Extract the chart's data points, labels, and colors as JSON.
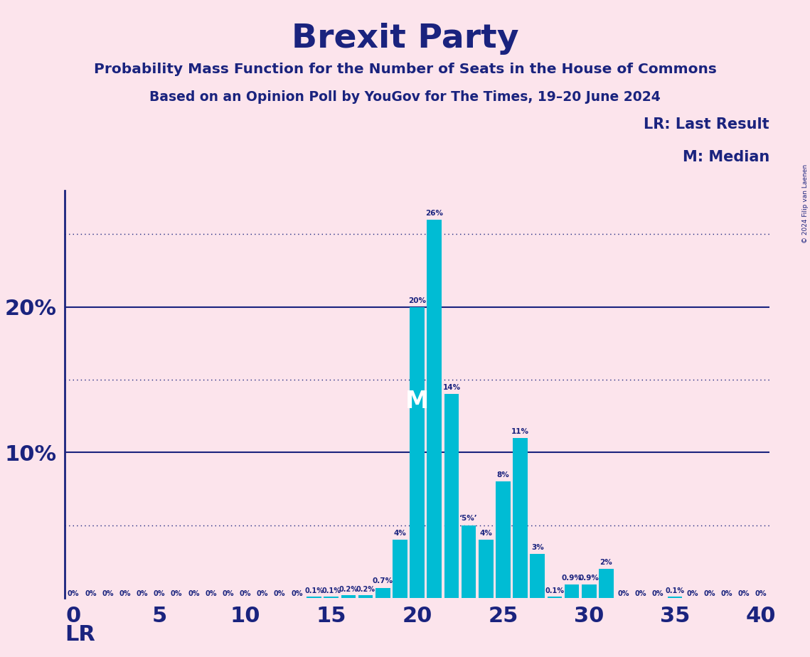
{
  "title": "Brexit Party",
  "subtitle1": "Probability Mass Function for the Number of Seats in the House of Commons",
  "subtitle2": "Based on an Opinion Poll by YouGov for The Times, 19–20 June 2024",
  "legend_lr": "LR: Last Result",
  "legend_m": "M: Median",
  "copyright": "© 2024 Filip van Laenen",
  "lr_label": "LR",
  "m_label": "M",
  "background_color": "#fce4ec",
  "bar_color": "#00bcd4",
  "title_color": "#1a237e",
  "axis_color": "#1a237e",
  "label_color": "#1a237e",
  "median_seat": 21,
  "lr_seat": 0,
  "xlim": [
    -0.5,
    40.5
  ],
  "ylim": [
    0,
    28
  ],
  "solid_ylines": [
    10,
    20
  ],
  "dotted_ylines": [
    5,
    15,
    25
  ],
  "bar_data": {
    "0": 0.0,
    "1": 0.0,
    "2": 0.0,
    "3": 0.0,
    "4": 0.0,
    "5": 0.0,
    "6": 0.0,
    "7": 0.0,
    "8": 0.0,
    "9": 0.0,
    "10": 0.0,
    "11": 0.0,
    "12": 0.0,
    "13": 0.0,
    "14": 0.1,
    "15": 0.1,
    "16": 0.2,
    "17": 0.2,
    "18": 0.7,
    "19": 4.0,
    "20": 20.0,
    "21": 26.0,
    "22": 14.0,
    "23": 5.0,
    "24": 4.0,
    "25": 8.0,
    "26": 11.0,
    "27": 3.0,
    "28": 0.1,
    "29": 0.9,
    "30": 0.9,
    "31": 2.0,
    "32": 0.0,
    "33": 0.0,
    "34": 0.0,
    "35": 0.1,
    "36": 0.0,
    "37": 0.0,
    "38": 0.0,
    "39": 0.0,
    "40": 0.0
  },
  "bar_label_map": {
    "0": "0%",
    "1": "0%",
    "2": "0%",
    "3": "0%",
    "4": "0%",
    "5": "0%",
    "6": "0%",
    "7": "0%",
    "8": "0%",
    "9": "0%",
    "10": "0%",
    "11": "0%",
    "12": "0%",
    "13": "0%",
    "14": "0.1%",
    "15": "0.1%",
    "16": "0.2%",
    "17": "0.2%",
    "18": "0.7%",
    "19": "4%",
    "20": "20%",
    "21": "26%",
    "22": "14%",
    "23": "‘5%’",
    "24": "4%",
    "25": "8%",
    "26": "11%",
    "27": "3%",
    "28": "0.1%",
    "29": "0.9%",
    "30": "0.9%",
    "31": "2%",
    "32": "0%",
    "33": "0%",
    "34": "0%",
    "35": "0.1%",
    "36": "0%",
    "37": "0%",
    "38": "0%",
    "39": "0%",
    "40": "0%"
  }
}
